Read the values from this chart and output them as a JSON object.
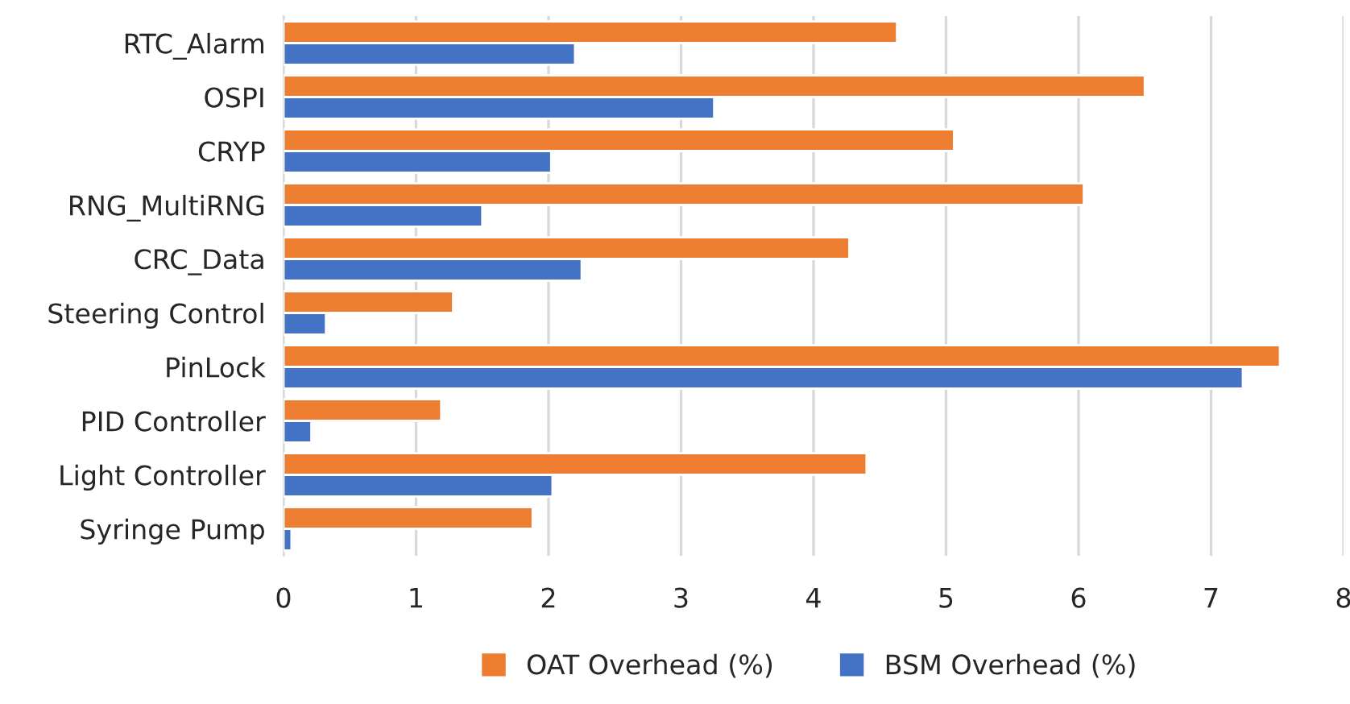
{
  "chart_data": {
    "type": "bar",
    "orientation": "horizontal",
    "categories": [
      "RTC_Alarm",
      "OSPI",
      "CRYP",
      "RNG_MultiRNG",
      "CRC_Data",
      "Steering Control",
      "PinLock",
      "PID Controller",
      "Light Controller",
      "Syringe Pump"
    ],
    "series": [
      {
        "name": "OAT Overhead (%)",
        "color": "#ed7d31",
        "values": [
          4.63,
          6.5,
          5.06,
          6.04,
          4.27,
          1.28,
          7.52,
          1.19,
          4.4,
          1.88
        ]
      },
      {
        "name": "BSM Overhead (%)",
        "color": "#4472c4",
        "values": [
          2.2,
          3.25,
          2.02,
          1.5,
          2.25,
          0.32,
          7.24,
          0.21,
          2.03,
          0.06
        ]
      }
    ],
    "xlim": [
      0,
      8
    ],
    "xticks": [
      0,
      1,
      2,
      3,
      4,
      5,
      6,
      7,
      8
    ],
    "grid": "x",
    "legend": "bottom"
  }
}
